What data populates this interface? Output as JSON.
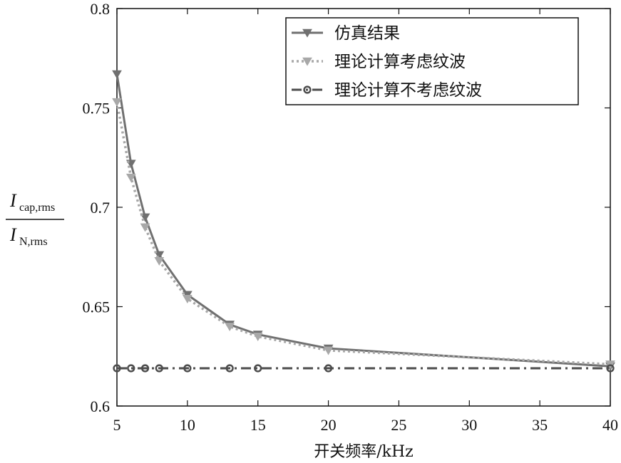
{
  "chart_data": {
    "type": "line",
    "xlabel": "开关频率/kHz",
    "ylabel": {
      "numerator": "I",
      "numerator_sub": "cap,rms",
      "denominator": "I",
      "denominator_sub": "N,rms"
    },
    "xlim": [
      5,
      40
    ],
    "ylim": [
      0.6,
      0.8
    ],
    "xticks": [
      5,
      10,
      15,
      20,
      25,
      30,
      35,
      40
    ],
    "xtick_labels": [
      "5",
      "10",
      "15",
      "20",
      "25",
      "30",
      "35",
      "40"
    ],
    "yticks": [
      0.6,
      0.65,
      0.7,
      0.75,
      0.8
    ],
    "ytick_labels": [
      "0.6",
      "0.65",
      "0.7",
      "0.75",
      "0.8"
    ],
    "legend_position": "top-right",
    "grid": false,
    "series": [
      {
        "name": "仿真结果",
        "color": "#707070",
        "line": "solid",
        "marker": "triangle-down",
        "x": [
          5,
          6,
          7,
          8,
          10,
          13,
          15,
          20,
          40
        ],
        "y": [
          0.767,
          0.722,
          0.695,
          0.676,
          0.656,
          0.641,
          0.636,
          0.629,
          0.62
        ]
      },
      {
        "name": "理论计算考虑纹波",
        "color": "#a8a8a8",
        "line": "dotted",
        "marker": "triangle-down",
        "x": [
          5,
          6,
          7,
          8,
          10,
          13,
          15,
          20,
          40
        ],
        "y": [
          0.753,
          0.715,
          0.69,
          0.673,
          0.654,
          0.64,
          0.635,
          0.628,
          0.621
        ]
      },
      {
        "name": "理论计算不考虑纹波",
        "color": "#4d4d4d",
        "line": "dashdot",
        "marker": "circle",
        "x": [
          5,
          6,
          7,
          8,
          10,
          13,
          15,
          20,
          40
        ],
        "y": [
          0.619,
          0.619,
          0.619,
          0.619,
          0.619,
          0.619,
          0.619,
          0.619,
          0.619
        ]
      }
    ]
  }
}
